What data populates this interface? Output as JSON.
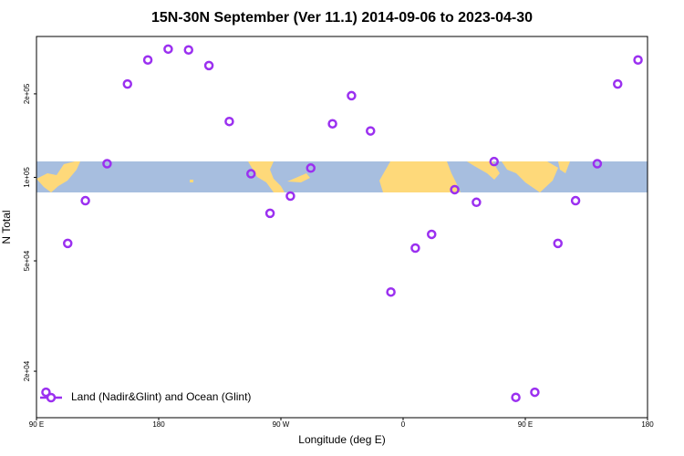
{
  "chart_data": {
    "type": "scatter",
    "title": "15N-30N September (Ver 11.1)   2014-09-06 to 2023-04-30",
    "xlabel": "Longitude (deg E)",
    "ylabel": "N Total",
    "series": [
      {
        "name": "Land (Nadir&Glint) and Ocean (Glint)",
        "color": "#9b30f0",
        "x": [
          97,
          113,
          126,
          142,
          157,
          172,
          187,
          202,
          217,
          232,
          248,
          262,
          277,
          292,
          308,
          322,
          336,
          351,
          369,
          381,
          398,
          414,
          427,
          443,
          457,
          474,
          487,
          503,
          518,
          533
        ],
        "values": [
          16800,
          57800,
          82400,
          112000,
          217000,
          265000,
          290000,
          288000,
          253000,
          159000,
          103000,
          74200,
          85600,
          108000,
          156000,
          197000,
          147000,
          38600,
          55600,
          62300,
          90300,
          81300,
          114000,
          16100,
          16800,
          57800,
          82400,
          112000,
          217000,
          265000
        ]
      }
    ],
    "xlim": [
      90,
      540
    ],
    "xticks": [
      {
        "value": 90,
        "label": "90 E"
      },
      {
        "value": 180,
        "label": "180"
      },
      {
        "value": 270,
        "label": "90 W"
      },
      {
        "value": 360,
        "label": "0"
      },
      {
        "value": 450,
        "label": "90 E"
      },
      {
        "value": 540,
        "label": "180"
      }
    ],
    "ylim": [
      13600,
      322000
    ],
    "ylog": true,
    "yticks": [
      {
        "value": 20000,
        "label": "2e+04"
      },
      {
        "value": 50000,
        "label": "5e+04"
      },
      {
        "value": 100000,
        "label": "1e+05"
      },
      {
        "value": 200000,
        "label": "2e+05"
      }
    ],
    "legend": "bottom-left"
  }
}
